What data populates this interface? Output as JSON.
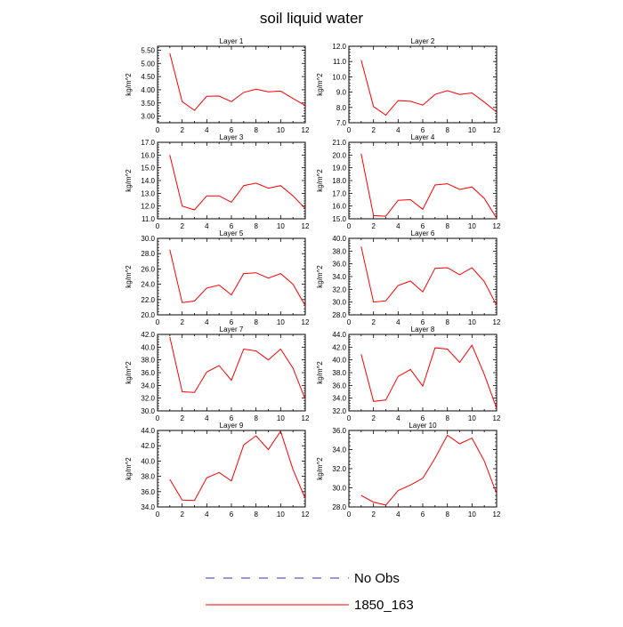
{
  "title": "soil liquid water",
  "legend": {
    "entries": [
      {
        "label": "No Obs",
        "color": "#3030c0",
        "style": "dashed"
      },
      {
        "label": "1850_163",
        "color": "#ff0000",
        "style": "solid"
      }
    ]
  },
  "colors": {
    "series": "#ff0000",
    "axis": "#000000"
  },
  "chart_data": [
    {
      "type": "line",
      "title": "Layer 1",
      "ylabel": "kg/m^2",
      "x": [
        1,
        2,
        3,
        4,
        5,
        6,
        7,
        8,
        9,
        10,
        11,
        12
      ],
      "xlim": [
        0,
        12
      ],
      "xticks": [
        0,
        2,
        4,
        6,
        8,
        10,
        12
      ],
      "ylim": [
        2.75,
        5.65
      ],
      "yticks": [
        3.0,
        3.5,
        4.0,
        4.5,
        5.0,
        5.5
      ],
      "ytick_labels": [
        "3.00",
        "3.50",
        "4.00",
        "4.50",
        "5.00",
        "5.50"
      ],
      "series": [
        {
          "name": "1850_163",
          "values": [
            5.38,
            3.55,
            3.22,
            3.75,
            3.76,
            3.55,
            3.9,
            4.02,
            3.92,
            3.95,
            3.67,
            3.4
          ]
        }
      ]
    },
    {
      "type": "line",
      "title": "Layer 2",
      "ylabel": "kg/m^2",
      "x": [
        1,
        2,
        3,
        4,
        5,
        6,
        7,
        8,
        9,
        10,
        11,
        12
      ],
      "xlim": [
        0,
        12
      ],
      "xticks": [
        0,
        2,
        4,
        6,
        8,
        10,
        12
      ],
      "ylim": [
        7.0,
        12.0
      ],
      "yticks": [
        7.0,
        8.0,
        9.0,
        10.0,
        11.0,
        12.0
      ],
      "ytick_labels": [
        "7.0",
        "8.0",
        "9.0",
        "10.0",
        "11.0",
        "12.0"
      ],
      "series": [
        {
          "name": "1850_163",
          "values": [
            11.1,
            8.05,
            7.5,
            8.45,
            8.4,
            8.15,
            8.85,
            9.1,
            8.85,
            8.95,
            8.35,
            7.7
          ]
        }
      ]
    },
    {
      "type": "line",
      "title": "Layer 3",
      "ylabel": "kg/m^2",
      "x": [
        1,
        2,
        3,
        4,
        5,
        6,
        7,
        8,
        9,
        10,
        11,
        12
      ],
      "xlim": [
        0,
        12
      ],
      "xticks": [
        0,
        2,
        4,
        6,
        8,
        10,
        12
      ],
      "ylim": [
        11.0,
        17.0
      ],
      "yticks": [
        11.0,
        12.0,
        13.0,
        14.0,
        15.0,
        16.0,
        17.0
      ],
      "ytick_labels": [
        "11.0",
        "12.0",
        "13.0",
        "14.0",
        "15.0",
        "16.0",
        "17.0"
      ],
      "series": [
        {
          "name": "1850_163",
          "values": [
            16.0,
            12.0,
            11.7,
            12.8,
            12.8,
            12.3,
            13.6,
            13.8,
            13.4,
            13.6,
            12.8,
            11.8
          ]
        }
      ]
    },
    {
      "type": "line",
      "title": "Layer 4",
      "ylabel": "kg/m^2",
      "x": [
        1,
        2,
        3,
        4,
        5,
        6,
        7,
        8,
        9,
        10,
        11,
        12
      ],
      "xlim": [
        0,
        12
      ],
      "xticks": [
        0,
        2,
        4,
        6,
        8,
        10,
        12
      ],
      "ylim": [
        15.0,
        21.0
      ],
      "yticks": [
        15.0,
        16.0,
        17.0,
        18.0,
        19.0,
        20.0,
        21.0
      ],
      "ytick_labels": [
        "15.0",
        "16.0",
        "17.0",
        "18.0",
        "19.0",
        "20.0",
        "21.0"
      ],
      "series": [
        {
          "name": "1850_163",
          "values": [
            20.1,
            15.25,
            15.2,
            16.45,
            16.5,
            15.75,
            17.65,
            17.75,
            17.3,
            17.5,
            16.6,
            15.05
          ]
        }
      ]
    },
    {
      "type": "line",
      "title": "Layer 5",
      "ylabel": "kg/m^2",
      "x": [
        1,
        2,
        3,
        4,
        5,
        6,
        7,
        8,
        9,
        10,
        11,
        12
      ],
      "xlim": [
        0,
        12
      ],
      "xticks": [
        0,
        2,
        4,
        6,
        8,
        10,
        12
      ],
      "ylim": [
        20.0,
        30.0
      ],
      "yticks": [
        20.0,
        22.0,
        24.0,
        26.0,
        28.0,
        30.0
      ],
      "ytick_labels": [
        "20.0",
        "22.0",
        "24.0",
        "26.0",
        "28.0",
        "30.0"
      ],
      "series": [
        {
          "name": "1850_163",
          "values": [
            28.5,
            21.6,
            21.8,
            23.5,
            23.9,
            22.6,
            25.4,
            25.5,
            24.8,
            25.4,
            24.0,
            21.2
          ]
        }
      ]
    },
    {
      "type": "line",
      "title": "Layer 6",
      "ylabel": "kg/m^2",
      "x": [
        1,
        2,
        3,
        4,
        5,
        6,
        7,
        8,
        9,
        10,
        11,
        12
      ],
      "xlim": [
        0,
        12
      ],
      "xticks": [
        0,
        2,
        4,
        6,
        8,
        10,
        12
      ],
      "ylim": [
        28.0,
        40.0
      ],
      "yticks": [
        28.0,
        30.0,
        32.0,
        34.0,
        36.0,
        38.0,
        40.0
      ],
      "ytick_labels": [
        "28.0",
        "30.0",
        "32.0",
        "34.0",
        "36.0",
        "38.0",
        "40.0"
      ],
      "series": [
        {
          "name": "1850_163",
          "values": [
            38.7,
            30.0,
            30.2,
            32.6,
            33.3,
            31.6,
            35.3,
            35.4,
            34.3,
            35.4,
            33.2,
            29.5
          ]
        }
      ]
    },
    {
      "type": "line",
      "title": "Layer 7",
      "ylabel": "kg/m^2",
      "x": [
        1,
        2,
        3,
        4,
        5,
        6,
        7,
        8,
        9,
        10,
        11,
        12
      ],
      "xlim": [
        0,
        12
      ],
      "xticks": [
        0,
        2,
        4,
        6,
        8,
        10,
        12
      ],
      "ylim": [
        30.0,
        42.0
      ],
      "yticks": [
        30.0,
        32.0,
        34.0,
        36.0,
        38.0,
        40.0,
        42.0
      ],
      "ytick_labels": [
        "30.0",
        "32.0",
        "34.0",
        "36.0",
        "38.0",
        "40.0",
        "42.0"
      ],
      "series": [
        {
          "name": "1850_163",
          "values": [
            41.6,
            33.0,
            32.9,
            36.1,
            37.1,
            34.8,
            39.7,
            39.4,
            38.0,
            39.7,
            36.7,
            31.8
          ]
        }
      ]
    },
    {
      "type": "line",
      "title": "Layer 8",
      "ylabel": "kg/m^2",
      "x": [
        1,
        2,
        3,
        4,
        5,
        6,
        7,
        8,
        9,
        10,
        11,
        12
      ],
      "xlim": [
        0,
        12
      ],
      "xticks": [
        0,
        2,
        4,
        6,
        8,
        10,
        12
      ],
      "ylim": [
        32.0,
        44.0
      ],
      "yticks": [
        32.0,
        34.0,
        36.0,
        38.0,
        40.0,
        42.0,
        44.0
      ],
      "ytick_labels": [
        "32.0",
        "34.0",
        "36.0",
        "38.0",
        "40.0",
        "42.0",
        "44.0"
      ],
      "series": [
        {
          "name": "1850_163",
          "values": [
            40.9,
            33.5,
            33.7,
            37.4,
            38.5,
            35.9,
            41.9,
            41.7,
            39.6,
            42.3,
            37.7,
            32.4
          ]
        }
      ]
    },
    {
      "type": "line",
      "title": "Layer 9",
      "ylabel": "kg/m^2",
      "x": [
        1,
        2,
        3,
        4,
        5,
        6,
        7,
        8,
        9,
        10,
        11,
        12
      ],
      "xlim": [
        0,
        12
      ],
      "xticks": [
        0,
        2,
        4,
        6,
        8,
        10,
        12
      ],
      "ylim": [
        34.0,
        44.0
      ],
      "yticks": [
        34.0,
        36.0,
        38.0,
        40.0,
        42.0,
        44.0
      ],
      "ytick_labels": [
        "34.0",
        "36.0",
        "38.0",
        "40.0",
        "42.0",
        "44.0"
      ],
      "series": [
        {
          "name": "1850_163",
          "values": [
            37.6,
            34.9,
            34.85,
            37.8,
            38.5,
            37.4,
            42.1,
            43.3,
            41.5,
            43.9,
            38.9,
            35.1
          ]
        }
      ]
    },
    {
      "type": "line",
      "title": "Layer 10",
      "ylabel": "kg/m^2",
      "x": [
        1,
        2,
        3,
        4,
        5,
        6,
        7,
        8,
        9,
        10,
        11,
        12
      ],
      "xlim": [
        0,
        12
      ],
      "xticks": [
        0,
        2,
        4,
        6,
        8,
        10,
        12
      ],
      "ylim": [
        28.0,
        36.0
      ],
      "yticks": [
        28.0,
        30.0,
        32.0,
        34.0,
        36.0
      ],
      "ytick_labels": [
        "28.0",
        "30.0",
        "32.0",
        "34.0",
        "36.0"
      ],
      "series": [
        {
          "name": "1850_163",
          "values": [
            29.2,
            28.5,
            28.2,
            29.7,
            30.3,
            31.0,
            33.1,
            35.5,
            34.6,
            35.2,
            32.8,
            29.4
          ]
        }
      ]
    }
  ]
}
